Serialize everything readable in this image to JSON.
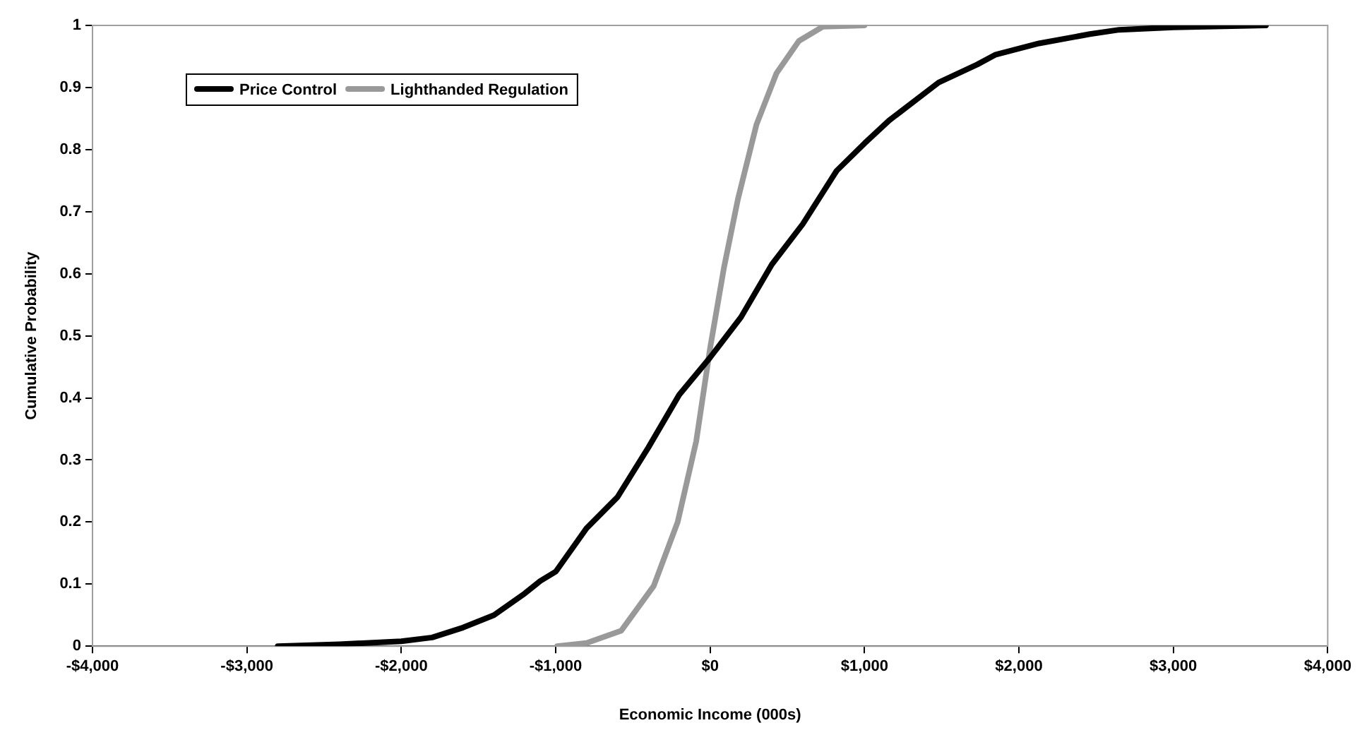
{
  "chart_data": {
    "type": "line",
    "xlabel": "Economic Income (000s)",
    "ylabel": "Cumulative Probability",
    "legend": "top left",
    "grid": false,
    "marker": "none",
    "line_style": "solid",
    "xlim": [
      -4000,
      4000
    ],
    "ylim": [
      0,
      1
    ],
    "xticks": [
      {
        "value": -4000,
        "label": "-$4,000"
      },
      {
        "value": -3000,
        "label": "-$3,000"
      },
      {
        "value": -2000,
        "label": "-$2,000"
      },
      {
        "value": -1000,
        "label": "-$1,000"
      },
      {
        "value": 0,
        "label": "$0"
      },
      {
        "value": 1000,
        "label": "$1,000"
      },
      {
        "value": 2000,
        "label": "$2,000"
      },
      {
        "value": 3000,
        "label": "$3,000"
      },
      {
        "value": 4000,
        "label": "$4,000"
      }
    ],
    "yticks": [
      0,
      0.1,
      0.2,
      0.3,
      0.4,
      0.5,
      0.6,
      0.7,
      0.8,
      0.9,
      1
    ],
    "series": [
      {
        "name": "Price Control",
        "color": "#000000",
        "x": [
          -2800,
          -2400,
          -2000,
          -1800,
          -1600,
          -1400,
          -1200,
          -1100,
          -1000,
          -800,
          -600,
          -400,
          -200,
          0,
          200,
          400,
          600,
          820,
          1000,
          1160,
          1480,
          1730,
          1850,
          2130,
          2460,
          2650,
          3000,
          3600
        ],
        "values": [
          0,
          0.003,
          0.008,
          0.014,
          0.03,
          0.05,
          0.085,
          0.105,
          0.12,
          0.19,
          0.24,
          0.32,
          0.405,
          0.465,
          0.53,
          0.615,
          0.68,
          0.766,
          0.81,
          0.847,
          0.908,
          0.937,
          0.953,
          0.971,
          0.986,
          0.993,
          0.997,
          1
        ]
      },
      {
        "name": "Lighthanded Regulation",
        "color": "#999999",
        "x": [
          -990,
          -800,
          -575,
          -365,
          -210,
          -90,
          0,
          90,
          180,
          300,
          430,
          575,
          730,
          1000
        ],
        "values": [
          0,
          0.005,
          0.025,
          0.097,
          0.2,
          0.33,
          0.48,
          0.61,
          0.72,
          0.84,
          0.923,
          0.975,
          0.998,
          1
        ]
      }
    ]
  }
}
